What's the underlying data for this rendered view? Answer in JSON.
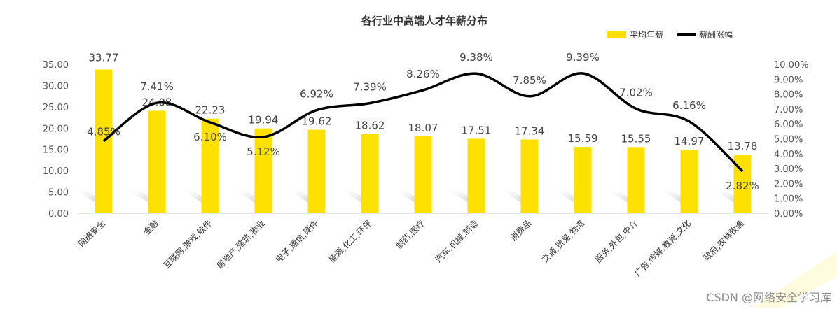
{
  "chart_data": {
    "type": "bar",
    "title": "各行业中高端人才年薪分布",
    "categories": [
      "网络安全",
      "金融",
      "互联网,游戏,软件",
      "房地产,建筑,物业",
      "电子,通信,硬件",
      "能源,化工,环保",
      "制药,医疗",
      "汽车,机械,制造",
      "消费品",
      "交通,贸易,物流",
      "服务,外包,中介",
      "广告,传媒,教育,文化",
      "政府,农林牧渔"
    ],
    "series": [
      {
        "name": "平均年薪",
        "type": "bar",
        "axis": "left",
        "color": "#FFE100",
        "values": [
          33.77,
          24.08,
          22.23,
          19.94,
          19.62,
          18.62,
          18.07,
          17.51,
          17.34,
          15.59,
          15.55,
          14.97,
          13.78
        ],
        "labels": [
          "33.77",
          "24.08",
          "22.23",
          "19.94",
          "19.62",
          "18.62",
          "18.07",
          "17.51",
          "17.34",
          "15.59",
          "15.55",
          "14.97",
          "13.78"
        ]
      },
      {
        "name": "薪酬涨幅",
        "type": "line",
        "axis": "right",
        "color": "#000000",
        "values": [
          4.85,
          7.41,
          6.1,
          5.12,
          6.92,
          7.39,
          8.26,
          9.38,
          7.85,
          9.39,
          7.02,
          6.16,
          2.82
        ],
        "labels": [
          "4.85%",
          "7.41%",
          "6.10%",
          "5.12%",
          "6.92%",
          "7.39%",
          "8.26%",
          "9.38%",
          "7.85%",
          "9.39%",
          "7.02%",
          "6.16%",
          "2.82%"
        ]
      }
    ],
    "y_left": {
      "min": 0,
      "max": 35,
      "ticks": [
        "0.00",
        "5.00",
        "10.00",
        "15.00",
        "20.00",
        "25.00",
        "30.00",
        "35.00"
      ]
    },
    "y_right": {
      "min": 0,
      "max": 10,
      "ticks": [
        "0.00%",
        "1.00%",
        "2.00%",
        "3.00%",
        "4.00%",
        "5.00%",
        "6.00%",
        "7.00%",
        "8.00%",
        "9.00%",
        "10.00%"
      ]
    },
    "legend_position": "top-right",
    "grid": false
  },
  "watermark": "CSDN @网络安全学习库"
}
